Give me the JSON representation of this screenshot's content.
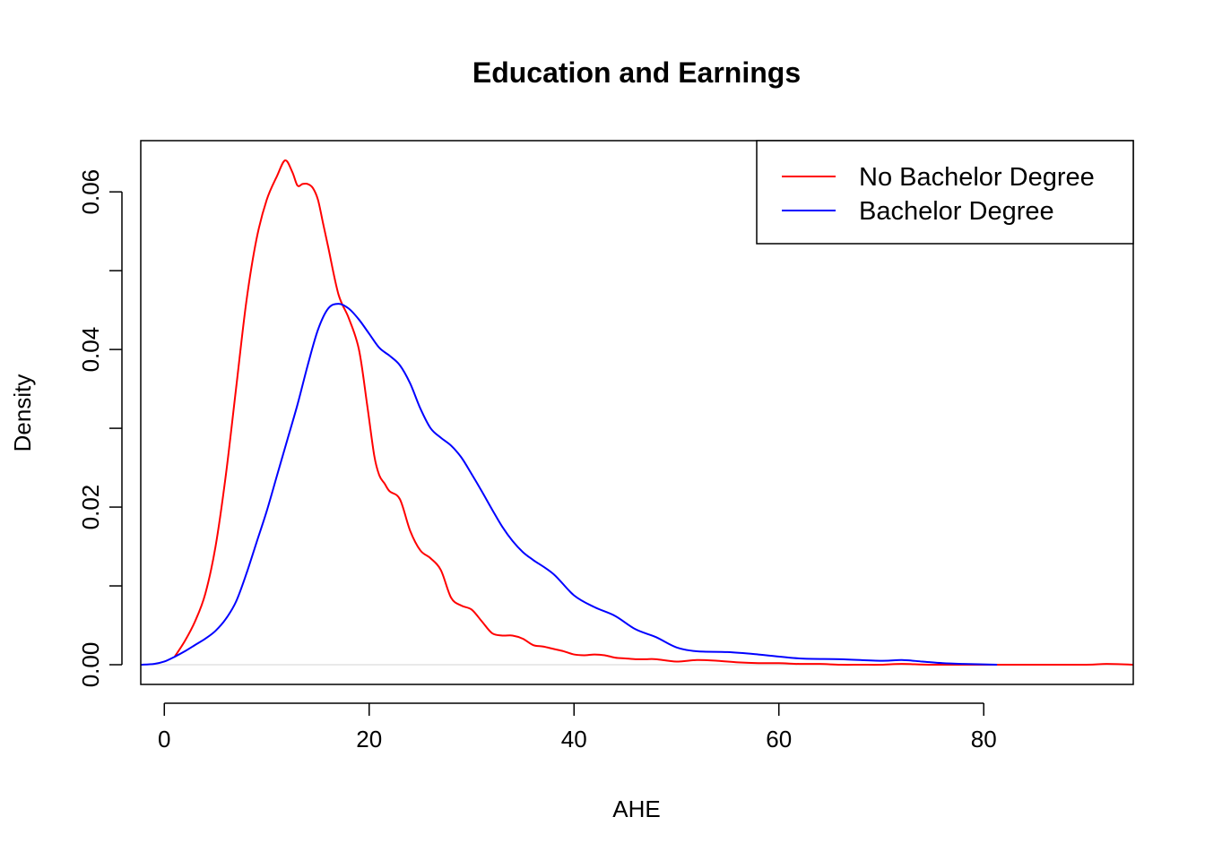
{
  "chart_data": {
    "type": "line",
    "title": "Education and Earnings",
    "xlabel": "AHE",
    "ylabel": "Density",
    "xlim": [
      -2.3,
      94.6
    ],
    "ylim": [
      -0.0025,
      0.0665
    ],
    "x_ticks": [
      0,
      20,
      40,
      60,
      80
    ],
    "x_tick_labels": [
      "0",
      "20",
      "40",
      "60",
      "80"
    ],
    "y_ticks": [
      0,
      0.01,
      0.02,
      0.03,
      0.04,
      0.05,
      0.06
    ],
    "y_tick_labels": [
      "0.00",
      "",
      "0.02",
      "",
      "0.04",
      "",
      "0.06"
    ],
    "grid": false,
    "legend_position": "top-right",
    "baseline": 0,
    "series": [
      {
        "name": "No Bachelor Degree",
        "color": "#ff0000",
        "x": [
          1.0,
          2.0,
          3.0,
          4.0,
          5.0,
          6.0,
          7.0,
          8.0,
          9.0,
          10.0,
          11.0,
          11.8,
          12.5,
          13.0,
          13.5,
          14.0,
          14.5,
          15.0,
          15.5,
          16.0,
          17.0,
          18.0,
          19.0,
          19.8,
          20.5,
          21.0,
          21.5,
          22.0,
          23.0,
          24.0,
          25.0,
          26.0,
          27.0,
          28.0,
          29.0,
          30.0,
          31.0,
          32.0,
          33.0,
          34.0,
          35.0,
          36.0,
          37.0,
          38.0,
          39.0,
          40.0,
          41.0,
          42.0,
          43.0,
          44.0,
          45.0,
          46.0,
          47.0,
          48.0,
          50.0,
          52.0,
          54.0,
          56.0,
          58.0,
          60.0,
          62.0,
          64.0,
          66.0,
          68.0,
          70.0,
          72.0,
          75.0,
          80.0,
          85.0,
          90.0,
          92.0,
          94.6
        ],
        "y": [
          0.001,
          0.003,
          0.0055,
          0.009,
          0.015,
          0.024,
          0.035,
          0.046,
          0.054,
          0.059,
          0.062,
          0.064,
          0.0625,
          0.0608,
          0.061,
          0.061,
          0.0605,
          0.059,
          0.056,
          0.053,
          0.047,
          0.044,
          0.04,
          0.033,
          0.0265,
          0.024,
          0.023,
          0.022,
          0.021,
          0.017,
          0.0145,
          0.0135,
          0.012,
          0.0085,
          0.0075,
          0.007,
          0.0055,
          0.004,
          0.0037,
          0.0037,
          0.0033,
          0.0025,
          0.0023,
          0.002,
          0.0017,
          0.0013,
          0.0012,
          0.0013,
          0.0012,
          0.0009,
          0.0008,
          0.0007,
          0.0007,
          0.0007,
          0.0004,
          0.0006,
          0.0005,
          0.0003,
          0.0002,
          0.0002,
          0.0001,
          0.0001,
          0.0,
          0.0,
          0.0,
          0.0001,
          0.0,
          0.0,
          0.0,
          0.0,
          0.0001,
          0.0
        ]
      },
      {
        "name": "Bachelor Degree",
        "color": "#0000ff",
        "x": [
          -2.3,
          -1.0,
          0.0,
          1.0,
          2.0,
          3.0,
          4.0,
          5.0,
          6.0,
          7.0,
          8.0,
          9.0,
          10.0,
          11.0,
          12.0,
          13.0,
          14.0,
          15.0,
          16.0,
          17.0,
          18.0,
          19.0,
          20.0,
          21.0,
          22.0,
          23.0,
          24.0,
          25.0,
          26.0,
          27.0,
          28.0,
          29.0,
          30.0,
          31.0,
          32.0,
          33.0,
          34.0,
          35.0,
          36.0,
          38.0,
          40.0,
          42.0,
          44.0,
          46.0,
          48.0,
          50.0,
          52.0,
          55.0,
          58.0,
          62.0,
          66.0,
          70.0,
          72.0,
          74.0,
          76.0,
          78.0,
          81.3
        ],
        "y": [
          0.0,
          0.0001,
          0.0004,
          0.001,
          0.0017,
          0.0025,
          0.0033,
          0.0043,
          0.0058,
          0.008,
          0.0115,
          0.0155,
          0.0195,
          0.024,
          0.0285,
          0.033,
          0.038,
          0.0425,
          0.0452,
          0.0458,
          0.0452,
          0.0438,
          0.042,
          0.0402,
          0.0392,
          0.038,
          0.0357,
          0.0325,
          0.03,
          0.0288,
          0.0278,
          0.0263,
          0.0242,
          0.022,
          0.0197,
          0.0175,
          0.0157,
          0.0143,
          0.0133,
          0.0115,
          0.0088,
          0.0073,
          0.0062,
          0.0045,
          0.0035,
          0.0022,
          0.0017,
          0.0016,
          0.0013,
          0.0008,
          0.0007,
          0.0005,
          0.0006,
          0.0004,
          0.0002,
          0.0001,
          0.0
        ]
      }
    ]
  }
}
